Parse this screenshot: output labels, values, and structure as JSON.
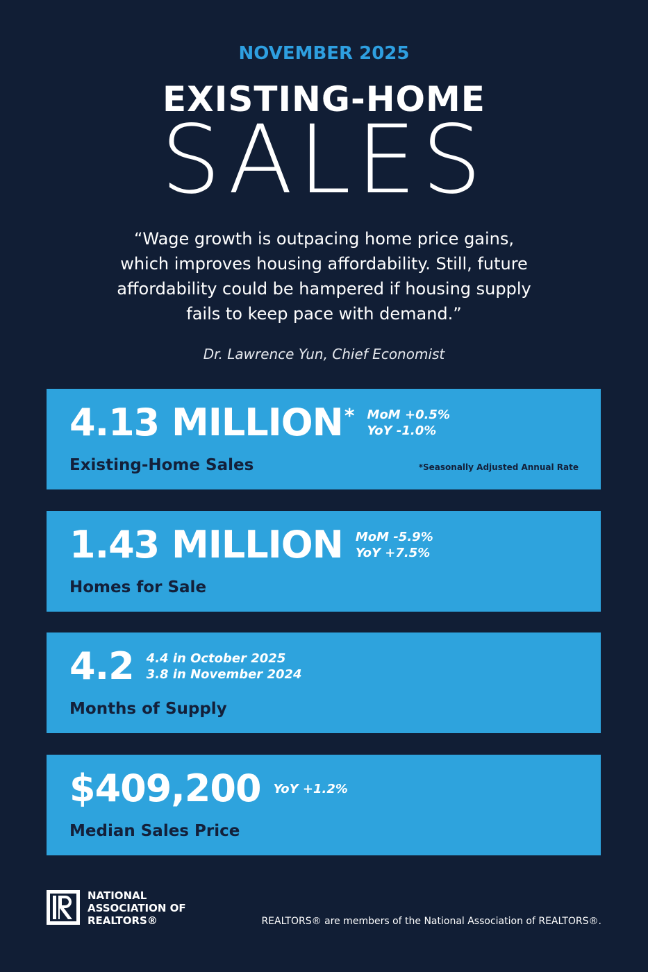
{
  "header": {
    "date": "NOVEMBER 2025",
    "title_top": "EXISTING-HOME",
    "title_bottom": "SALES"
  },
  "quote": {
    "lines": [
      "“Wage growth is outpacing home price gains,",
      "which improves housing affordability. Still, future",
      "affordability could be hampered if housing supply",
      "fails to keep pace with demand.”"
    ],
    "attribution": "Dr. Lawrence Yun, Chief Economist"
  },
  "cards": [
    {
      "headline": "4.13 MILLION",
      "marker": "*",
      "stats": [
        "MoM +0.5%",
        "YoY -1.0%"
      ],
      "label": "Existing-Home Sales",
      "footnote": "*Seasonally Adjusted Annual Rate"
    },
    {
      "headline": "1.43 MILLION",
      "stats": [
        "MoM -5.9%",
        "YoY +7.5%"
      ],
      "label": "Homes for Sale"
    },
    {
      "headline": "4.2",
      "stats": [
        "4.4 in October 2025",
        "3.8 in November 2024"
      ],
      "label": "Months of Supply"
    },
    {
      "headline": "$409,200",
      "stats": [
        "YoY +1.2%"
      ],
      "label": "Median Sales Price"
    }
  ],
  "footer": {
    "logo_lines": [
      "NATIONAL",
      "ASSOCIATION OF",
      "REALTORS®"
    ],
    "note": "REALTORS® are members of the National Association of REALTORS®."
  }
}
